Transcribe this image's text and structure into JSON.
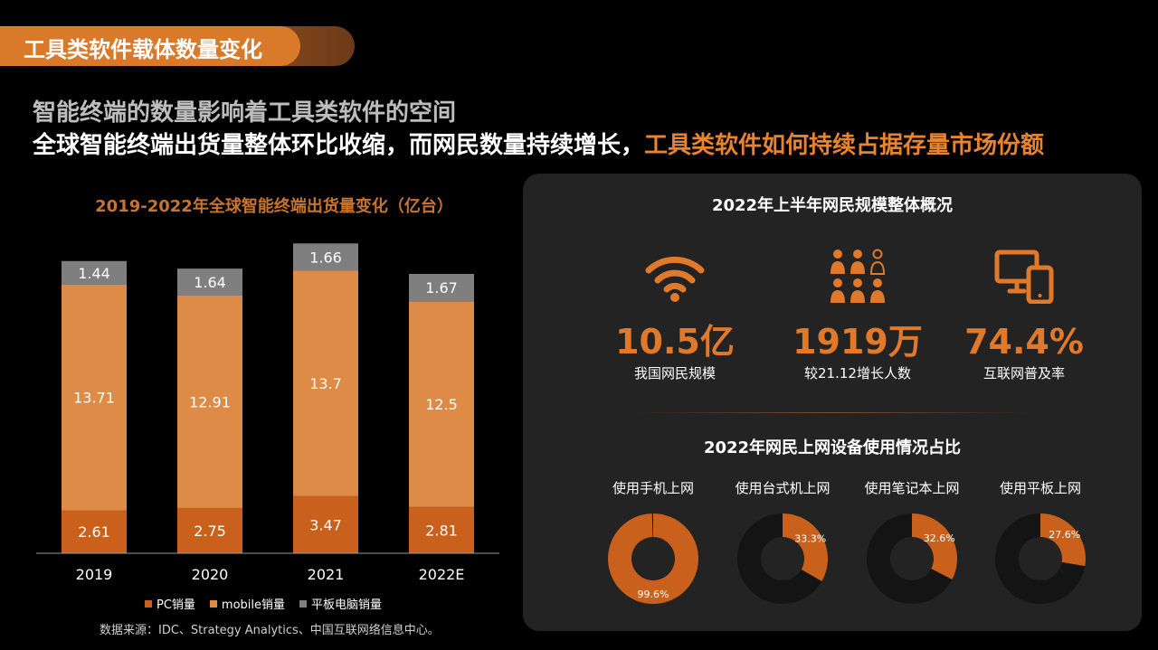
{
  "header": {
    "banner_title": "工具类软件载体数量变化",
    "subtitle": "智能终端的数量影响着工具类软件的空间",
    "headline_main": "全球智能终端出货量整体环比收缩，而网民数量持续增长，",
    "headline_accent": "工具类软件如何持续占据存量市场份额"
  },
  "colors": {
    "pc": "#c9611c",
    "mobile": "#de8b47",
    "tablet": "#7f7f7f",
    "accent": "#e07a2a",
    "donut_track": "#141414"
  },
  "chart_data": {
    "type": "bar",
    "stacked": true,
    "title": "2019-2022年全球智能终端出货量变化（亿台）",
    "categories": [
      "2019",
      "2020",
      "2021",
      "2022E"
    ],
    "series": [
      {
        "name": "PC销量",
        "values": [
          2.61,
          2.75,
          3.47,
          2.81
        ]
      },
      {
        "name": "mobile销量",
        "values": [
          13.71,
          12.91,
          13.7,
          12.5
        ]
      },
      {
        "name": "平板电脑销量",
        "values": [
          1.44,
          1.64,
          1.66,
          1.67
        ]
      }
    ],
    "value_labels": [
      [
        "2.61",
        "2.75",
        "3.47",
        "2.81"
      ],
      [
        "13.71",
        "12.91",
        "13.7",
        "12.5"
      ],
      [
        "1.44",
        "1.64",
        "1.66",
        "1.67"
      ]
    ],
    "legend_position": "bottom",
    "grid": false
  },
  "source": "数据来源：IDC、Strategy  Analytics、中国互联网络信息中心。",
  "panel": {
    "title": "2022年上半年网民规模整体概况",
    "stats": [
      {
        "icon": "wifi-icon",
        "value": "10.5亿",
        "label": "我国网民规模"
      },
      {
        "icon": "people-group-icon",
        "value": "1919万",
        "label": "较21.12增长人数"
      },
      {
        "icon": "devices-icon",
        "value": "74.4%",
        "label": "互联网普及率"
      }
    ],
    "devices_title": "2022年网民上网设备使用情况占比",
    "devices": [
      {
        "label": "使用手机上网",
        "percent": 99.6,
        "percent_label": "99.6%"
      },
      {
        "label": "使用台式机上网",
        "percent": 33.3,
        "percent_label": "33.3%"
      },
      {
        "label": "使用笔记本上网",
        "percent": 32.6,
        "percent_label": "32.6%"
      },
      {
        "label": "使用平板上网",
        "percent": 27.6,
        "percent_label": "27.6%"
      }
    ]
  }
}
